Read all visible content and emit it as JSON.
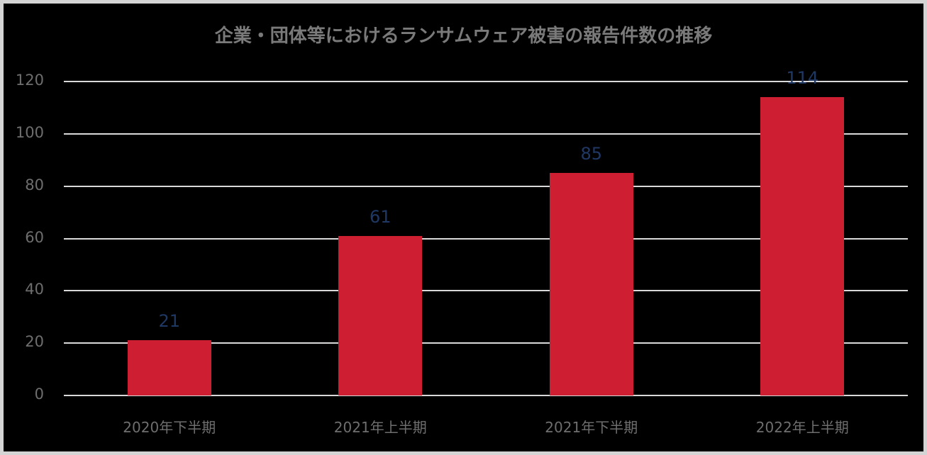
{
  "chart_data": {
    "type": "bar",
    "title": "企業・団体等におけるランサムウェア被害の報告件数の推移",
    "categories": [
      "2020年下半期",
      "2021年上半期",
      "2021年下半期",
      "2022年上半期"
    ],
    "values": [
      21,
      61,
      85,
      114
    ],
    "xlabel": "",
    "ylabel": "",
    "ylim": [
      0,
      120
    ],
    "yticks": [
      "0",
      "20",
      "40",
      "60",
      "80",
      "100",
      "120"
    ],
    "grid": true,
    "legend": "none",
    "data_labels": [
      "21",
      "61",
      "85",
      "114"
    ],
    "colors": {
      "bar": "#cd1e32",
      "data_label": "#1f3864",
      "background": "#000000",
      "gridline": "#d9d9d9",
      "text": "#6e6e6e"
    }
  }
}
